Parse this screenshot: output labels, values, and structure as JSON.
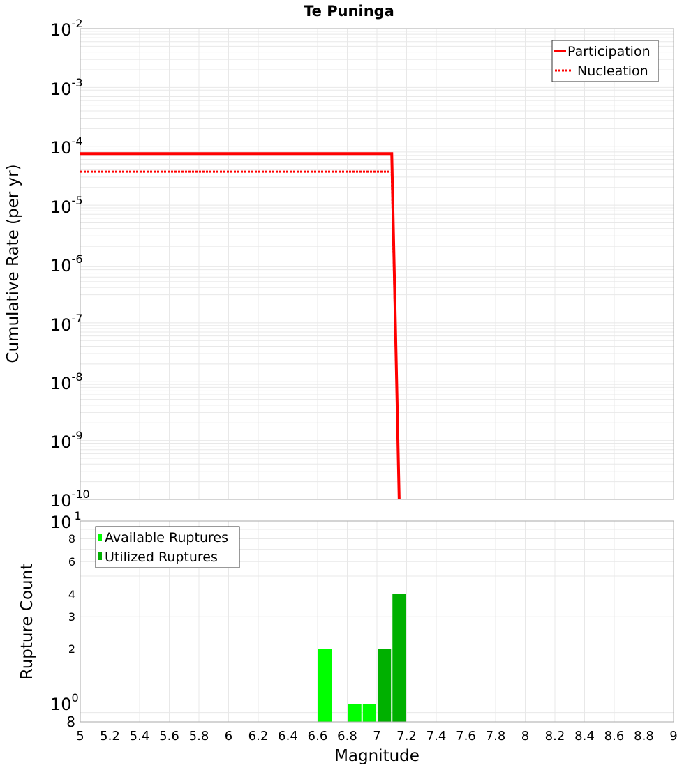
{
  "title": "Te Puninga",
  "colors": {
    "participation": "#ff0000",
    "nucleation": "#ff0000",
    "available": "#00ff00",
    "utilized": "#00b000",
    "grid": "#e8e8e8",
    "axis": "#aaaaaa"
  },
  "chart_data": [
    {
      "type": "line",
      "title": "Te Puninga",
      "xlabel": "Magnitude",
      "ylabel": "Cumulative Rate (per yr)",
      "xlim": [
        5,
        9
      ],
      "ylim": [
        1e-10,
        0.01
      ],
      "yscale": "log",
      "grid": true,
      "legend_position": "top-right",
      "y_tick_labels": [
        "10^-2",
        "10^-3",
        "10^-4",
        "10^-5",
        "10^-6",
        "10^-7",
        "10^-8",
        "10^-9",
        "10^-10"
      ],
      "series": [
        {
          "name": "Participation",
          "style": "solid",
          "x": [
            5.0,
            7.1,
            7.15
          ],
          "y": [
            7.5e-05,
            7.5e-05,
            1e-10
          ]
        },
        {
          "name": "Nucleation",
          "style": "dotted",
          "x": [
            5.0,
            7.1,
            7.15
          ],
          "y": [
            3.7e-05,
            3.7e-05,
            1e-10
          ]
        }
      ]
    },
    {
      "type": "bar",
      "xlabel": "Magnitude",
      "ylabel": "Rupture Count",
      "xlim": [
        5,
        9
      ],
      "ylim": [
        0.8,
        10
      ],
      "yscale": "log",
      "grid": true,
      "legend_position": "top-left",
      "y_tick_labels": [
        "10^1",
        "8",
        "6",
        "4",
        "3",
        "2",
        "10^0",
        "8"
      ],
      "x_tick_labels": [
        "5",
        "5.2",
        "5.4",
        "5.6",
        "5.8",
        "6",
        "6.2",
        "6.4",
        "6.6",
        "6.8",
        "7",
        "7.2",
        "7.4",
        "7.6",
        "7.8",
        "8",
        "8.2",
        "8.4",
        "8.6",
        "8.8",
        "9"
      ],
      "series": [
        {
          "name": "Available Ruptures",
          "x": [
            6.65,
            6.85,
            6.95
          ],
          "values": [
            2,
            1,
            1
          ]
        },
        {
          "name": "Utilized Ruptures",
          "x": [
            7.05,
            7.15
          ],
          "values": [
            2,
            4
          ]
        }
      ]
    }
  ],
  "top": {
    "ylabel": "Cumulative Rate (per yr)",
    "yticks": [
      {
        "base": "10",
        "exp": "-2"
      },
      {
        "base": "10",
        "exp": "-3"
      },
      {
        "base": "10",
        "exp": "-4"
      },
      {
        "base": "10",
        "exp": "-5"
      },
      {
        "base": "10",
        "exp": "-6"
      },
      {
        "base": "10",
        "exp": "-7"
      },
      {
        "base": "10",
        "exp": "-8"
      },
      {
        "base": "10",
        "exp": "-9"
      },
      {
        "base": "10",
        "exp": "-10"
      }
    ],
    "legend": {
      "participation": "Participation",
      "nucleation": "Nucleation"
    }
  },
  "bottom": {
    "ylabel": "Rupture Count",
    "yticks": {
      "ten1_base": "10",
      "ten1_exp": "1",
      "t8": "8",
      "t6": "6",
      "t4": "4",
      "t3": "3",
      "t2": "2",
      "ten0_base": "10",
      "ten0_exp": "0",
      "t08": "8"
    },
    "legend": {
      "available": "Available Ruptures",
      "utilized": "Utilized Ruptures"
    }
  },
  "xaxis": {
    "label": "Magnitude",
    "ticks": [
      "5",
      "5.2",
      "5.4",
      "5.6",
      "5.8",
      "6",
      "6.2",
      "6.4",
      "6.6",
      "6.8",
      "7",
      "7.2",
      "7.4",
      "7.6",
      "7.8",
      "8",
      "8.2",
      "8.4",
      "8.6",
      "8.8",
      "9"
    ]
  }
}
